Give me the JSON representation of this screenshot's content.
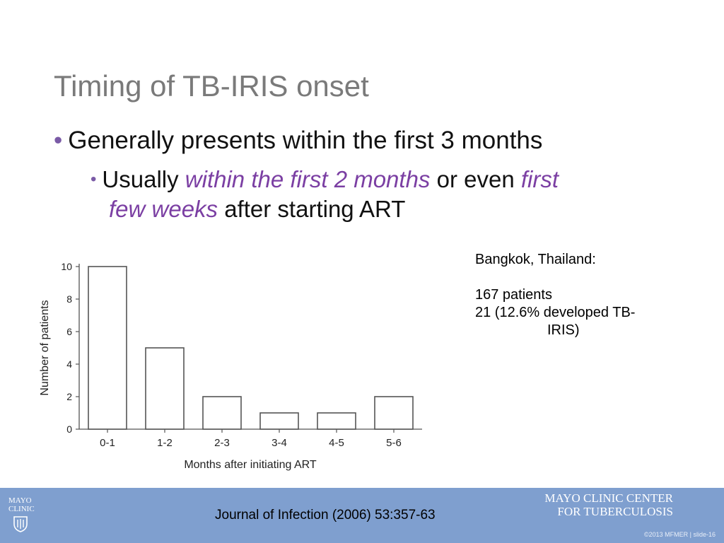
{
  "slide": {
    "title": "Timing of TB-IRIS onset",
    "bullet1": "Generally presents within the first 3 months",
    "bullet2": {
      "part1": "Usually ",
      "emph1": "within the first 2 months",
      "part2": " or even ",
      "emph2": "first",
      "emph3": "few weeks",
      "part3": " after starting ART"
    },
    "bullet_glyph": "•"
  },
  "note": {
    "line1": "Bangkok, Thailand:",
    "line2": "167 patients",
    "line3": "21 (12.6% developed TB-",
    "line4": "IRIS)"
  },
  "chart_data": {
    "type": "bar",
    "categories": [
      "0-1",
      "1-2",
      "2-3",
      "3-4",
      "4-5",
      "5-6"
    ],
    "values": [
      10,
      5,
      2,
      1,
      1,
      2
    ],
    "xlabel": "Months after initiating  ART",
    "ylabel": "Number of patients",
    "ylim": [
      0,
      10
    ],
    "yticks": [
      0,
      2,
      4,
      6,
      8,
      10
    ],
    "grid": false,
    "bar_fill": "#ffffff",
    "bar_stroke": "#555555"
  },
  "footer": {
    "logo_line1": "MAYO",
    "logo_line2": "CLINIC",
    "citation": "Journal of Infection (2006) 53:357-63",
    "center_line1": "MAYO CLINIC CENTER",
    "center_line2": "FOR TUBERCULOSIS",
    "copyright": "©2013 MFMER  |  slide-16"
  },
  "colors": {
    "footer_band": "#7f9fcf",
    "title": "#7a7a7a",
    "emphasis": "#7b3fa3"
  }
}
